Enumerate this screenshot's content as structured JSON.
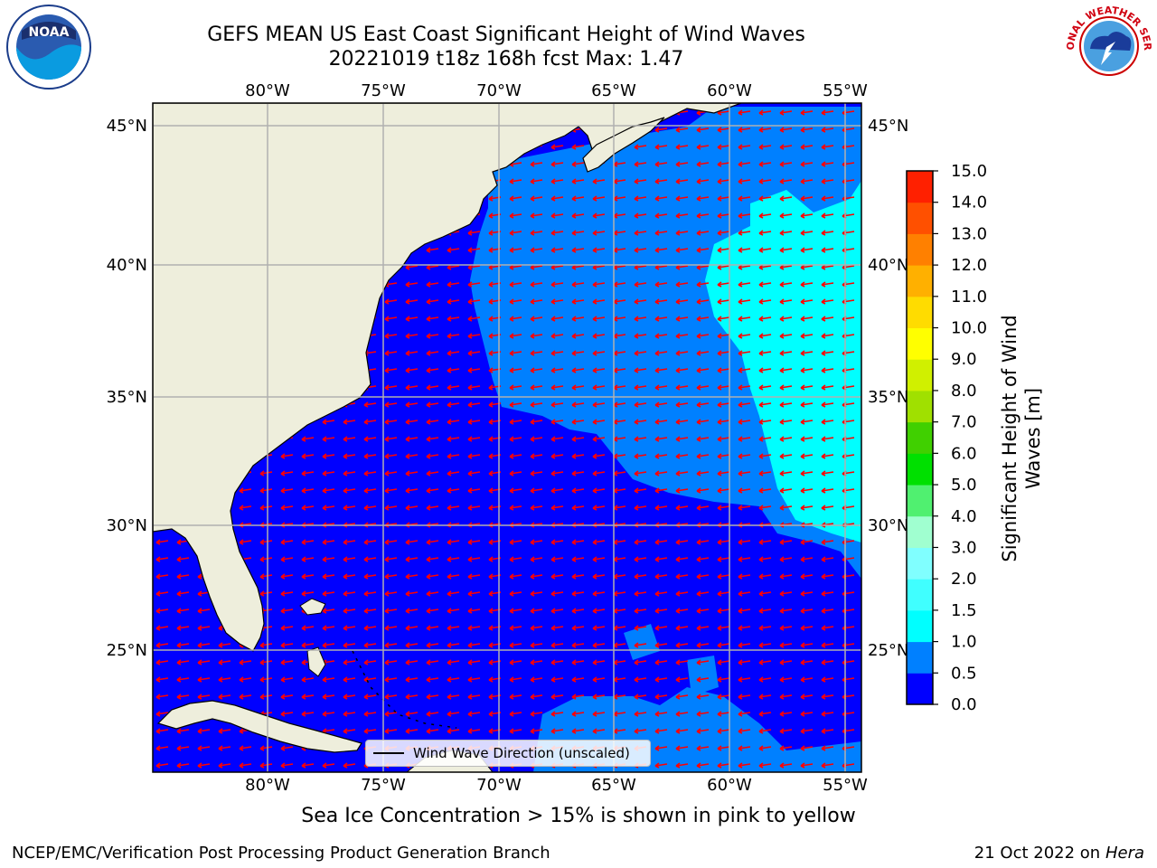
{
  "title": {
    "line1": "GEFS MEAN US East Coast Significant Height of Wind Waves",
    "line2": "20221019 t18z 168h fcst   Max: 1.47"
  },
  "axes": {
    "lon_ticks": [
      "80°W",
      "75°W",
      "70°W",
      "65°W",
      "60°W",
      "55°W"
    ],
    "lat_ticks": [
      "45°N",
      "40°N",
      "35°N",
      "30°N",
      "25°N"
    ]
  },
  "colorbar": {
    "label_line1": "Significant Height of Wind",
    "label_line2": "Waves [m]",
    "ticks": [
      "0.0",
      "0.5",
      "1.0",
      "1.5",
      "2.0",
      "3.0",
      "4.0",
      "5.0",
      "6.0",
      "7.0",
      "8.0",
      "9.0",
      "10.0",
      "11.0",
      "12.0",
      "13.0",
      "14.0",
      "15.0"
    ],
    "colors": [
      "#0000ff",
      "#0080ff",
      "#00ffff",
      "#40ffff",
      "#80ffff",
      "#a0ffd0",
      "#50f070",
      "#00e000",
      "#40d000",
      "#a0e000",
      "#d0f000",
      "#ffff00",
      "#ffdc00",
      "#ffb000",
      "#ff8000",
      "#ff5000",
      "#ff2000"
    ]
  },
  "legend": {
    "label": "Wind Wave Direction (unscaled)"
  },
  "subtitle": "Sea Ice Concentration > 15% is shown in pink to yellow",
  "footer": {
    "left": "NCEP/EMC/Verification Post Processing Product Generation Branch",
    "right_prefix": "21 Oct 2022 on ",
    "right_machine": "Hera"
  },
  "logos": {
    "noaa_text": "NOAA",
    "nws_text": "NATIONAL WEATHER SERVICE"
  },
  "map_colors": {
    "land": "#eeeedc",
    "wave_low": "#0000ff",
    "wave_mid": "#0080ff",
    "wave_high": "#00ffff",
    "arrow": "#ff0000",
    "grid": "#b0b0b0"
  }
}
